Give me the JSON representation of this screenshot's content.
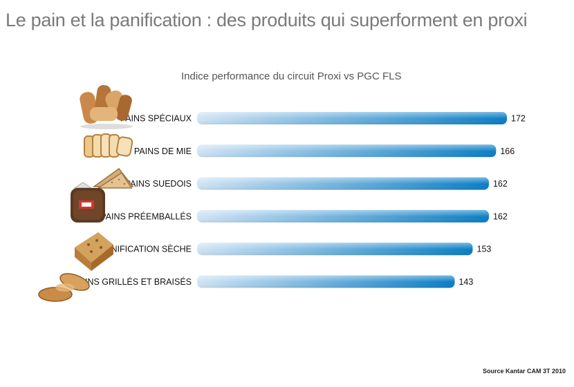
{
  "page_title": "Le pain et la panification : des produits qui superforment en proxi",
  "source": "Source Kantar CAM 3T 2010",
  "colors": {
    "bar_start": "#cfe3f5",
    "bar_end": "#0a7dc4",
    "title": "#7a7a7a"
  },
  "chart_data": {
    "type": "bar",
    "orientation": "horizontal",
    "title": "Indice performance du circuit Proxi vs PGC FLS",
    "categories": [
      "PAINS SPÉCIAUX",
      "PAINS DE MIE",
      "PAINS SUEDOIS",
      "PAINS PRÉEMBALLÉS",
      "PANIFICATION SÈCHE",
      "PAINS GRILLÉS ET BRAISÉS"
    ],
    "values": [
      172,
      166,
      162,
      162,
      153,
      143
    ],
    "xlim": [
      0,
      172
    ],
    "grid": false,
    "legend": "none",
    "data_labels": true
  },
  "icons": [
    "bread-assortment-icon",
    "sliced-bread-icon",
    "crispbread-icon",
    "packaged-bread-icon",
    "loaf-icon",
    "toasts-icon"
  ]
}
